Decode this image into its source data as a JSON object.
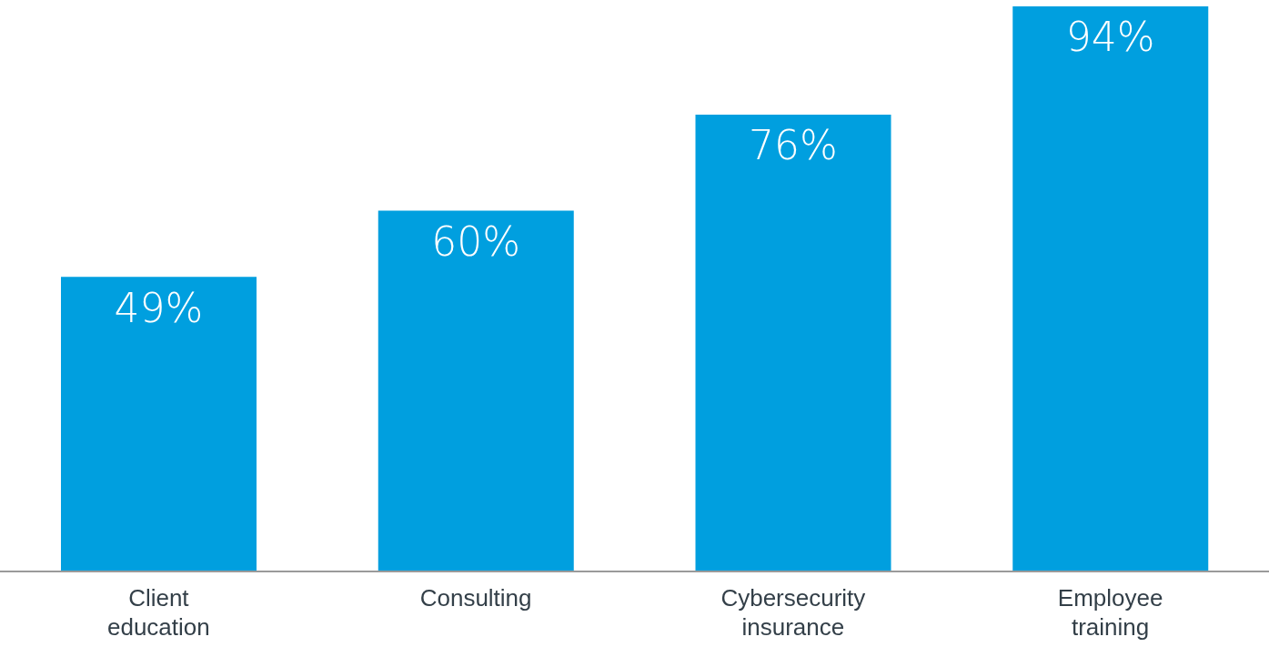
{
  "chart_data": {
    "type": "bar",
    "categories": [
      "Client education",
      "Consulting",
      "Cybersecurity insurance",
      "Employee training"
    ],
    "values": [
      49,
      60,
      76,
      94
    ],
    "value_labels": [
      "49%",
      "60%",
      "76%",
      "94%"
    ],
    "color": "#009fdf"
  }
}
